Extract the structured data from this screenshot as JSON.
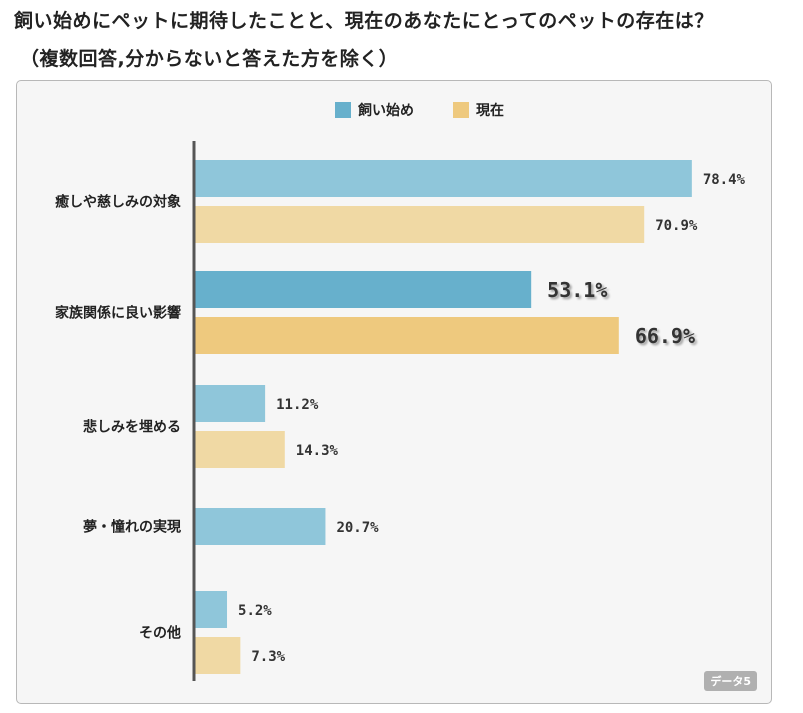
{
  "title_line1": "飼い始めにペットに期待したことと、現在のあなたにとってのペットの存在は？",
  "title_line2": "（複数回答,分からないと答えた方を除く）",
  "badge": "データ5",
  "chart_data": {
    "type": "bar",
    "orientation": "horizontal",
    "categories": [
      "癒しや慈しみの対象",
      "家族関係に良い影響",
      "悲しみを埋める",
      "夢・憧れの実現",
      "その他"
    ],
    "series": [
      {
        "name": "飼い始め",
        "color": "#8fc6da",
        "highlight_color": "#67b0cc",
        "values": [
          78.4,
          53.1,
          11.2,
          20.7,
          5.2
        ],
        "labels": [
          "78.4%",
          "53.1%",
          "11.2%",
          "20.7%",
          "5.2%"
        ]
      },
      {
        "name": "現在",
        "color": "#f0d9a4",
        "highlight_color": "#eec97e",
        "values": [
          70.9,
          66.9,
          14.3,
          null,
          7.3
        ],
        "labels": [
          "70.9%",
          "66.9%",
          "14.3%",
          "",
          "7.3%"
        ]
      }
    ],
    "highlight_category": "家族関係に良い影響",
    "xlim": [
      0,
      100
    ],
    "legend": "top-center",
    "grid": false
  }
}
